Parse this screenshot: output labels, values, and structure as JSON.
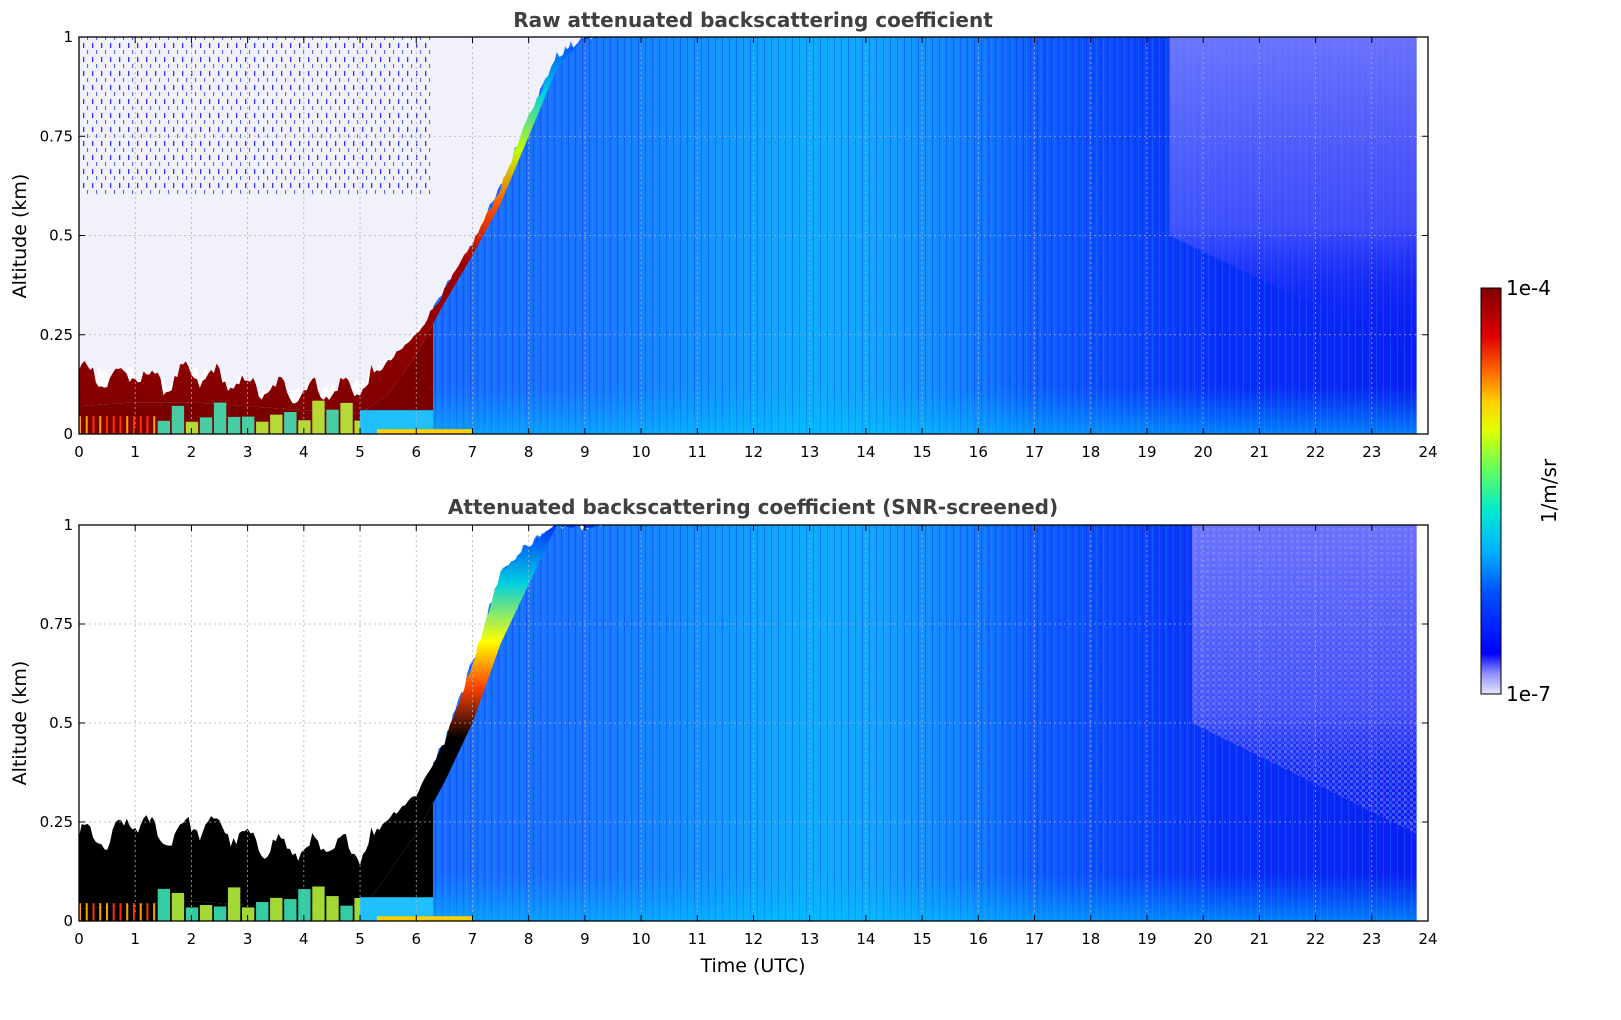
{
  "chart_data": [
    {
      "type": "heatmap",
      "title": "Raw attenuated backscattering coefficient",
      "xlabel": "",
      "ylabel": "Altitude (km)",
      "xlim": [
        0,
        24
      ],
      "ylim": [
        0,
        1
      ],
      "xticks": [
        "0",
        "1",
        "2",
        "3",
        "4",
        "5",
        "6",
        "7",
        "8",
        "9",
        "10",
        "11",
        "12",
        "13",
        "14",
        "15",
        "16",
        "17",
        "18",
        "19",
        "20",
        "21",
        "22",
        "23",
        "24"
      ],
      "yticks": [
        "0",
        "0.25",
        "0.5",
        "0.75",
        "1"
      ],
      "grid": true,
      "data_end_time": 23.8,
      "layer_top_km": [
        [
          0,
          0.16
        ],
        [
          0.5,
          0.14
        ],
        [
          1,
          0.15
        ],
        [
          1.5,
          0.13
        ],
        [
          2,
          0.15
        ],
        [
          2.5,
          0.14
        ],
        [
          3,
          0.12
        ],
        [
          3.5,
          0.11
        ],
        [
          4,
          0.11
        ],
        [
          4.5,
          0.11
        ],
        [
          5,
          0.12
        ],
        [
          5.5,
          0.18
        ],
        [
          6,
          0.25
        ],
        [
          6.5,
          0.36
        ],
        [
          7,
          0.48
        ],
        [
          7.5,
          0.62
        ],
        [
          8,
          0.8
        ],
        [
          8.5,
          0.95
        ],
        [
          9,
          1.0
        ],
        [
          9.3,
          1.0
        ]
      ],
      "layer_bottom_km": [
        [
          0,
          0.07
        ],
        [
          1,
          0.08
        ],
        [
          2,
          0.08
        ],
        [
          3,
          0.07
        ],
        [
          4,
          0.06
        ],
        [
          5,
          0.05
        ],
        [
          5.5,
          0.1
        ],
        [
          6,
          0.2
        ],
        [
          6.5,
          0.33
        ],
        [
          7,
          0.45
        ],
        [
          7.5,
          0.58
        ],
        [
          8,
          0.75
        ],
        [
          8.5,
          0.92
        ],
        [
          9,
          1.0
        ]
      ],
      "colorbar": {
        "label": "1/m/sr",
        "min": "1e-7",
        "max": "1e-4",
        "scale": "log"
      }
    },
    {
      "type": "heatmap",
      "title": "Attenuated backscattering coefficient (SNR-screened)",
      "xlabel": "Time (UTC)",
      "ylabel": "Altitude (km)",
      "xlim": [
        0,
        24
      ],
      "ylim": [
        0,
        1
      ],
      "xticks": [
        "0",
        "1",
        "2",
        "3",
        "4",
        "5",
        "6",
        "7",
        "8",
        "9",
        "10",
        "11",
        "12",
        "13",
        "14",
        "15",
        "16",
        "17",
        "18",
        "19",
        "20",
        "21",
        "22",
        "23",
        "24"
      ],
      "yticks": [
        "0",
        "0.25",
        "0.5",
        "0.75",
        "1"
      ],
      "grid": true,
      "data_end_time": 23.8,
      "layer_top_km": [
        [
          0,
          0.22
        ],
        [
          0.5,
          0.2
        ],
        [
          1,
          0.26
        ],
        [
          1.5,
          0.21
        ],
        [
          2,
          0.24
        ],
        [
          2.5,
          0.24
        ],
        [
          3,
          0.2
        ],
        [
          3.5,
          0.19
        ],
        [
          4,
          0.18
        ],
        [
          4.5,
          0.19
        ],
        [
          5,
          0.18
        ],
        [
          5.5,
          0.26
        ],
        [
          6,
          0.32
        ],
        [
          6.5,
          0.45
        ],
        [
          7,
          0.65
        ],
        [
          7.5,
          0.88
        ],
        [
          8,
          0.95
        ],
        [
          8.5,
          1.0
        ],
        [
          9.3,
          1.0
        ]
      ],
      "layer_bottom_km": [
        [
          0,
          0.03
        ],
        [
          1,
          0.04
        ],
        [
          2,
          0.05
        ],
        [
          3,
          0.04
        ],
        [
          4,
          0.03
        ],
        [
          5,
          0.02
        ],
        [
          5.5,
          0.12
        ],
        [
          6,
          0.22
        ],
        [
          6.5,
          0.35
        ],
        [
          7,
          0.5
        ],
        [
          7.5,
          0.7
        ],
        [
          8,
          0.85
        ],
        [
          8.5,
          1.0
        ]
      ],
      "colorbar": {
        "label": "1/m/sr",
        "min": "1e-7",
        "max": "1e-4",
        "scale": "log"
      }
    }
  ],
  "colors": {
    "title": "#404040",
    "grid": "#b0b0b0",
    "colormap": [
      "#e6e6fa",
      "#9090ff",
      "#0000ff",
      "#0040ff",
      "#00a0ff",
      "#00e0e0",
      "#40ff80",
      "#c0ff00",
      "#ffff00",
      "#ffa000",
      "#ff3000",
      "#c00000",
      "#800000"
    ]
  }
}
